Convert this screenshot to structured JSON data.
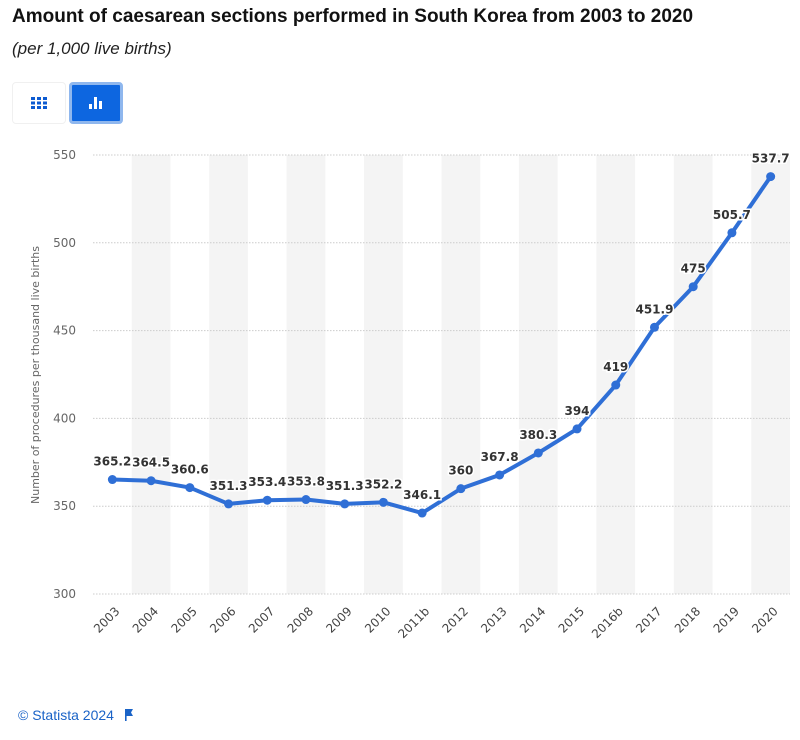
{
  "title": "Amount of caesarean sections performed in South Korea from 2003 to 2020",
  "subtitle": "(per 1,000 live births)",
  "toolbar": {
    "table_icon": "grid-icon",
    "chart_icon": "bar-chart-icon",
    "active": "chart"
  },
  "footer": {
    "copyright": "© Statista 2024",
    "flag_icon": "flag-icon"
  },
  "colors": {
    "line": "#2f6fd6",
    "accent": "#0d66e0",
    "band": "#f4f4f4"
  },
  "chart_data": {
    "type": "line",
    "title": "Amount of caesarean sections performed in South Korea from 2003 to 2020",
    "subtitle": "(per 1,000 live births)",
    "xlabel": "",
    "ylabel": "Number of procedures per thousand live births",
    "ylim": [
      300,
      550
    ],
    "yticks": [
      300,
      350,
      400,
      450,
      500,
      550
    ],
    "grid": true,
    "categories": [
      "2003",
      "2004",
      "2005",
      "2006",
      "2007",
      "2008",
      "2009",
      "2010",
      "2011b",
      "2012",
      "2013",
      "2014",
      "2015",
      "2016b",
      "2017",
      "2018",
      "2019",
      "2020"
    ],
    "values": [
      365.2,
      364.5,
      360.6,
      351.3,
      353.4,
      353.8,
      351.3,
      352.2,
      346.1,
      360,
      367.8,
      380.3,
      394,
      419,
      451.9,
      475,
      505.7,
      537.7
    ],
    "labels": [
      "365.2",
      "364.5",
      "360.6",
      "351.3",
      "353.4",
      "353.8",
      "351.3",
      "352.2",
      "346.1",
      "360",
      "367.8",
      "380.3",
      "394",
      "419",
      "451.9",
      "475",
      "505.7",
      "537.7"
    ]
  }
}
